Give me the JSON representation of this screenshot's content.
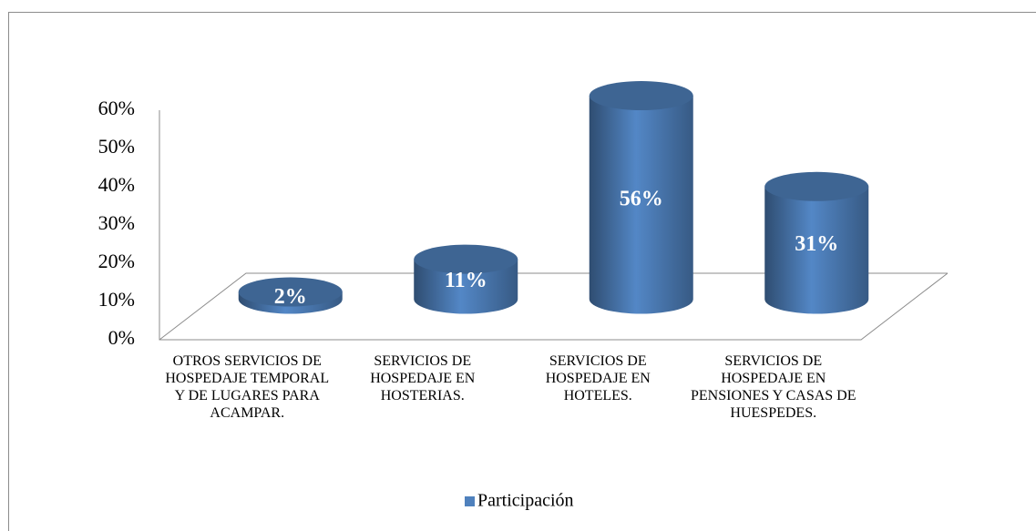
{
  "chart_data": {
    "type": "bar",
    "categories": [
      "OTROS SERVICIOS DE HOSPEDAJE TEMPORAL Y DE LUGARES PARA ACAMPAR.",
      "SERVICIOS DE HOSPEDAJE EN HOSTERIAS.",
      "SERVICIOS DE HOSPEDAJE EN HOTELES.",
      "SERVICIOS DE HOSPEDAJE EN PENSIONES Y CASAS DE HUESPEDES."
    ],
    "series": [
      {
        "name": "Participación",
        "color": "#4f81bd",
        "values": [
          2,
          11,
          56,
          31
        ],
        "value_labels": [
          "2%",
          "11%",
          "56%",
          "31%"
        ]
      }
    ],
    "ylim": [
      0,
      60
    ],
    "yticks": [
      {
        "value": 0,
        "label": "0%"
      },
      {
        "value": 10,
        "label": "10%"
      },
      {
        "value": 20,
        "label": "20%"
      },
      {
        "value": 30,
        "label": "30%"
      },
      {
        "value": 40,
        "label": "40%"
      },
      {
        "value": 50,
        "label": "50%"
      },
      {
        "value": 60,
        "label": "60%"
      }
    ],
    "legend": "bottom"
  }
}
